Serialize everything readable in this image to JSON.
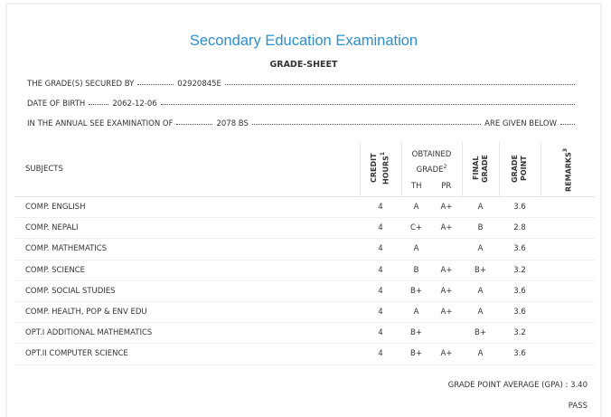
{
  "header": {
    "title": "Secondary Education Examination",
    "subtitle": "GRADE-SHEET"
  },
  "info": [
    {
      "label": "THE GRADE(S) SECURED BY",
      "value": "02920845E"
    },
    {
      "label": "DATE OF BIRTH",
      "value": "2062-12-06"
    },
    {
      "label": "IN THE ANNUAL SEE EXAMINATION OF",
      "value": "2078 BS",
      "suffix": "ARE GIVEN BELOW"
    }
  ],
  "table": {
    "columns": {
      "subjects": "SUBJECTS",
      "credit_hours": {
        "text": "CREDIT HOURS",
        "note": "1"
      },
      "obtained_grade": {
        "text": "OBTAINED GRADE",
        "note": "2"
      },
      "th": "TH",
      "pr": "PR",
      "final_grade": "FINAL GRADE",
      "grade_point": "GRADE POINT",
      "remarks": {
        "text": "REMARKS",
        "note": "3"
      }
    },
    "rows": [
      [
        "COMP. ENGLISH",
        "4",
        "A",
        "A+",
        "A",
        "3.6"
      ],
      [
        "COMP. NEPALI",
        "4",
        "C+",
        "A+",
        "B",
        "2.8"
      ],
      [
        "COMP. MATHEMATICS",
        "4",
        "A",
        null,
        "A",
        "3.6"
      ],
      [
        "COMP. SCIENCE",
        "4",
        "B",
        "A+",
        "B+",
        "3.2"
      ],
      [
        "COMP. SOCIAL STUDIES",
        "4",
        "B+",
        "A+",
        "A",
        "3.6"
      ],
      [
        "COMP. HEALTH, POP & ENV EDU",
        "4",
        "A",
        "A+",
        "A",
        "3.6"
      ],
      [
        "OPT.I ADDITIONAL MATHEMATICS",
        "4",
        "B+",
        null,
        "B+",
        "3.2"
      ],
      [
        "OPT.II COMPUTER SCIENCE",
        "4",
        "B+",
        "A+",
        "A",
        "3.6"
      ]
    ]
  },
  "gpa": {
    "label": "GRADE POINT AVERAGE (GPA) :",
    "value": "3.40"
  },
  "result": "PASS"
}
